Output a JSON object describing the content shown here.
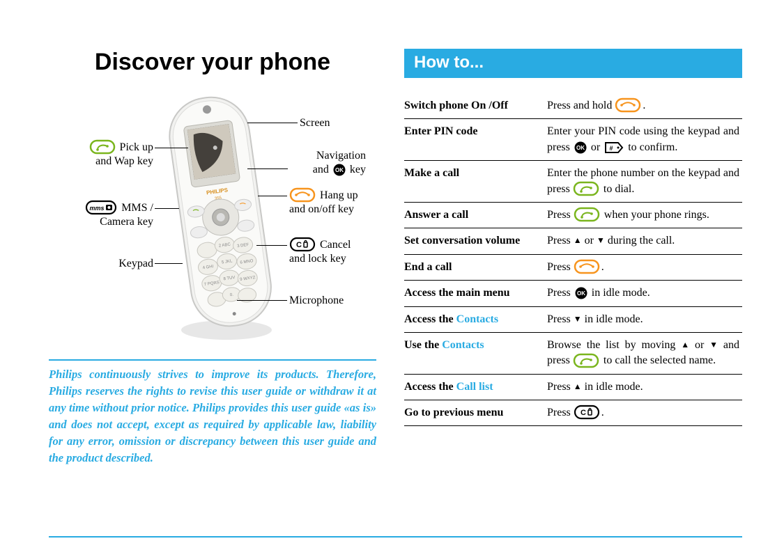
{
  "title": "Discover your phone",
  "howto_title": "How to...",
  "colors": {
    "accent": "#29abe2",
    "pickup_stroke": "#7ab51d",
    "hangup_stroke": "#f7941d",
    "text": "#000000"
  },
  "labels": {
    "pickup": "Pick up\nand Wap key",
    "mms": "MMS /\nCamera key",
    "keypad": "Keypad",
    "screen": "Screen",
    "nav_a": "Navigation",
    "nav_b": "and",
    "nav_c": "key",
    "hangup": "Hang up\nand on/off key",
    "cancel": "Cancel\nand lock key",
    "microphone": "Microphone"
  },
  "icon_text": {
    "mms": "mms",
    "ca": "C",
    "ok": "OK"
  },
  "disclaimer": "Philips continuously strives to improve its products. Therefore, Philips reserves the rights to revise this user guide or withdraw it at any time without prior notice. Philips provides this user guide «as is» and does not accept, except as required by applicable law, liability for any error, omission or discrepancy between this user guide and the product described.",
  "howto": [
    {
      "k": "Switch phone On /Off",
      "v": "Press and hold {HANGUP}."
    },
    {
      "k": "Enter PIN code",
      "v": "Enter your PIN code using the keypad and press {OK} or {TAG} to confirm."
    },
    {
      "k": "Make a call",
      "v": "Enter the phone number on the keypad and press {PICKUP} to dial."
    },
    {
      "k": "Answer a call",
      "v": "Press {PICKUP} when your phone rings."
    },
    {
      "k": "Set conversation volume",
      "v": "Press {UP} or {DOWN} during the call."
    },
    {
      "k": "End a call",
      "v": "Press {HANGUP}."
    },
    {
      "k": "Access the main menu",
      "v": "Press {OK} in idle mode."
    },
    {
      "k_html": "Access the <span class=\"highlight\">Contacts</span>",
      "v": "Press {DOWN} in idle mode."
    },
    {
      "k_html": "Use the <span class=\"highlight\">Contacts</span>",
      "v": "Browse the list by moving {UP} or {DOWN} and press {PICKUP} to call the selected name."
    },
    {
      "k_html": "Access the <span class=\"highlight\">Call list</span>",
      "v": "Press {UP} in idle mode."
    },
    {
      "k": "Go to previous menu",
      "v": "Press {CA}."
    }
  ]
}
